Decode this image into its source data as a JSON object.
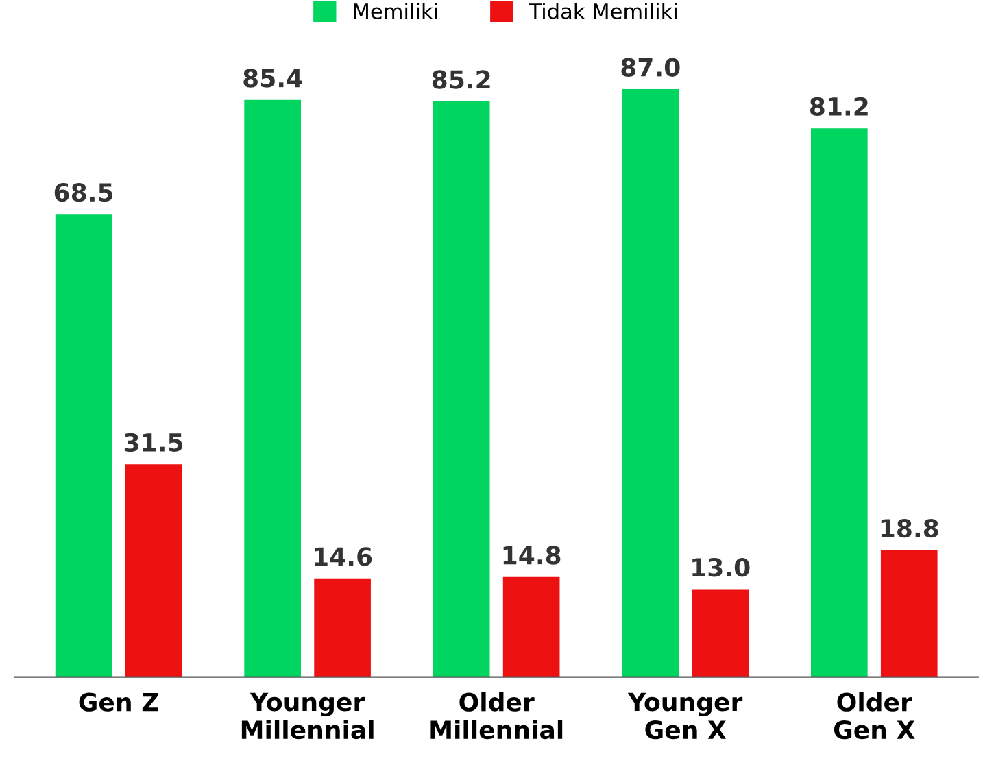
{
  "chart_data": {
    "type": "bar",
    "categories": [
      "Gen Z",
      "Younger\nMillennial",
      "Older\nMillennial",
      "Younger\nGen X",
      "Older\nGen X"
    ],
    "series": [
      {
        "name": "Memiliki",
        "color": "#00d55f",
        "values": [
          68.5,
          85.4,
          85.2,
          87.0,
          81.2
        ],
        "value_labels": [
          "68.5",
          "85.4",
          "85.2",
          "87.0",
          "81.2"
        ]
      },
      {
        "name": "Tidak Memiliki",
        "color": "#ee1111",
        "values": [
          31.5,
          14.6,
          14.8,
          13.0,
          18.8
        ],
        "value_labels": [
          "31.5",
          "14.6",
          "14.8",
          "13.0",
          "18.8"
        ]
      }
    ],
    "legend": "top",
    "grid": false
  }
}
